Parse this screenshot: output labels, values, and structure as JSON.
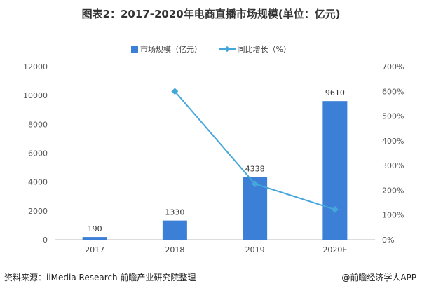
{
  "chart_data": {
    "type": "bar+line",
    "title": "图表2：2017-2020年电商直播市场规模(单位：亿元)",
    "categories": [
      "2017",
      "2018",
      "2019",
      "2020E"
    ],
    "series": [
      {
        "name": "市场规模（亿元）",
        "type": "bar",
        "axis": "left",
        "values": [
          190,
          1330,
          4338,
          9610
        ],
        "color": "#3b7fd6"
      },
      {
        "name": "同比增长（%）",
        "type": "line",
        "axis": "right",
        "values": [
          null,
          600,
          226,
          122
        ],
        "color": "#45a6dc"
      }
    ],
    "ylim": [
      0,
      12000
    ],
    "yticks": [
      "0",
      "2000",
      "4000",
      "6000",
      "8000",
      "10000",
      "12000"
    ],
    "y2lim": [
      0,
      700
    ],
    "y2ticks": [
      "0%",
      "100%",
      "200%",
      "300%",
      "400%",
      "500%",
      "600%",
      "700%"
    ],
    "data_labels": [
      "190",
      "1330",
      "4338",
      "9610"
    ],
    "grid": false,
    "legend": "top"
  },
  "footer": {
    "source": "资料来源：iiMedia Research 前瞻产业研究院整理",
    "brand": "@前瞻经济学人APP"
  }
}
